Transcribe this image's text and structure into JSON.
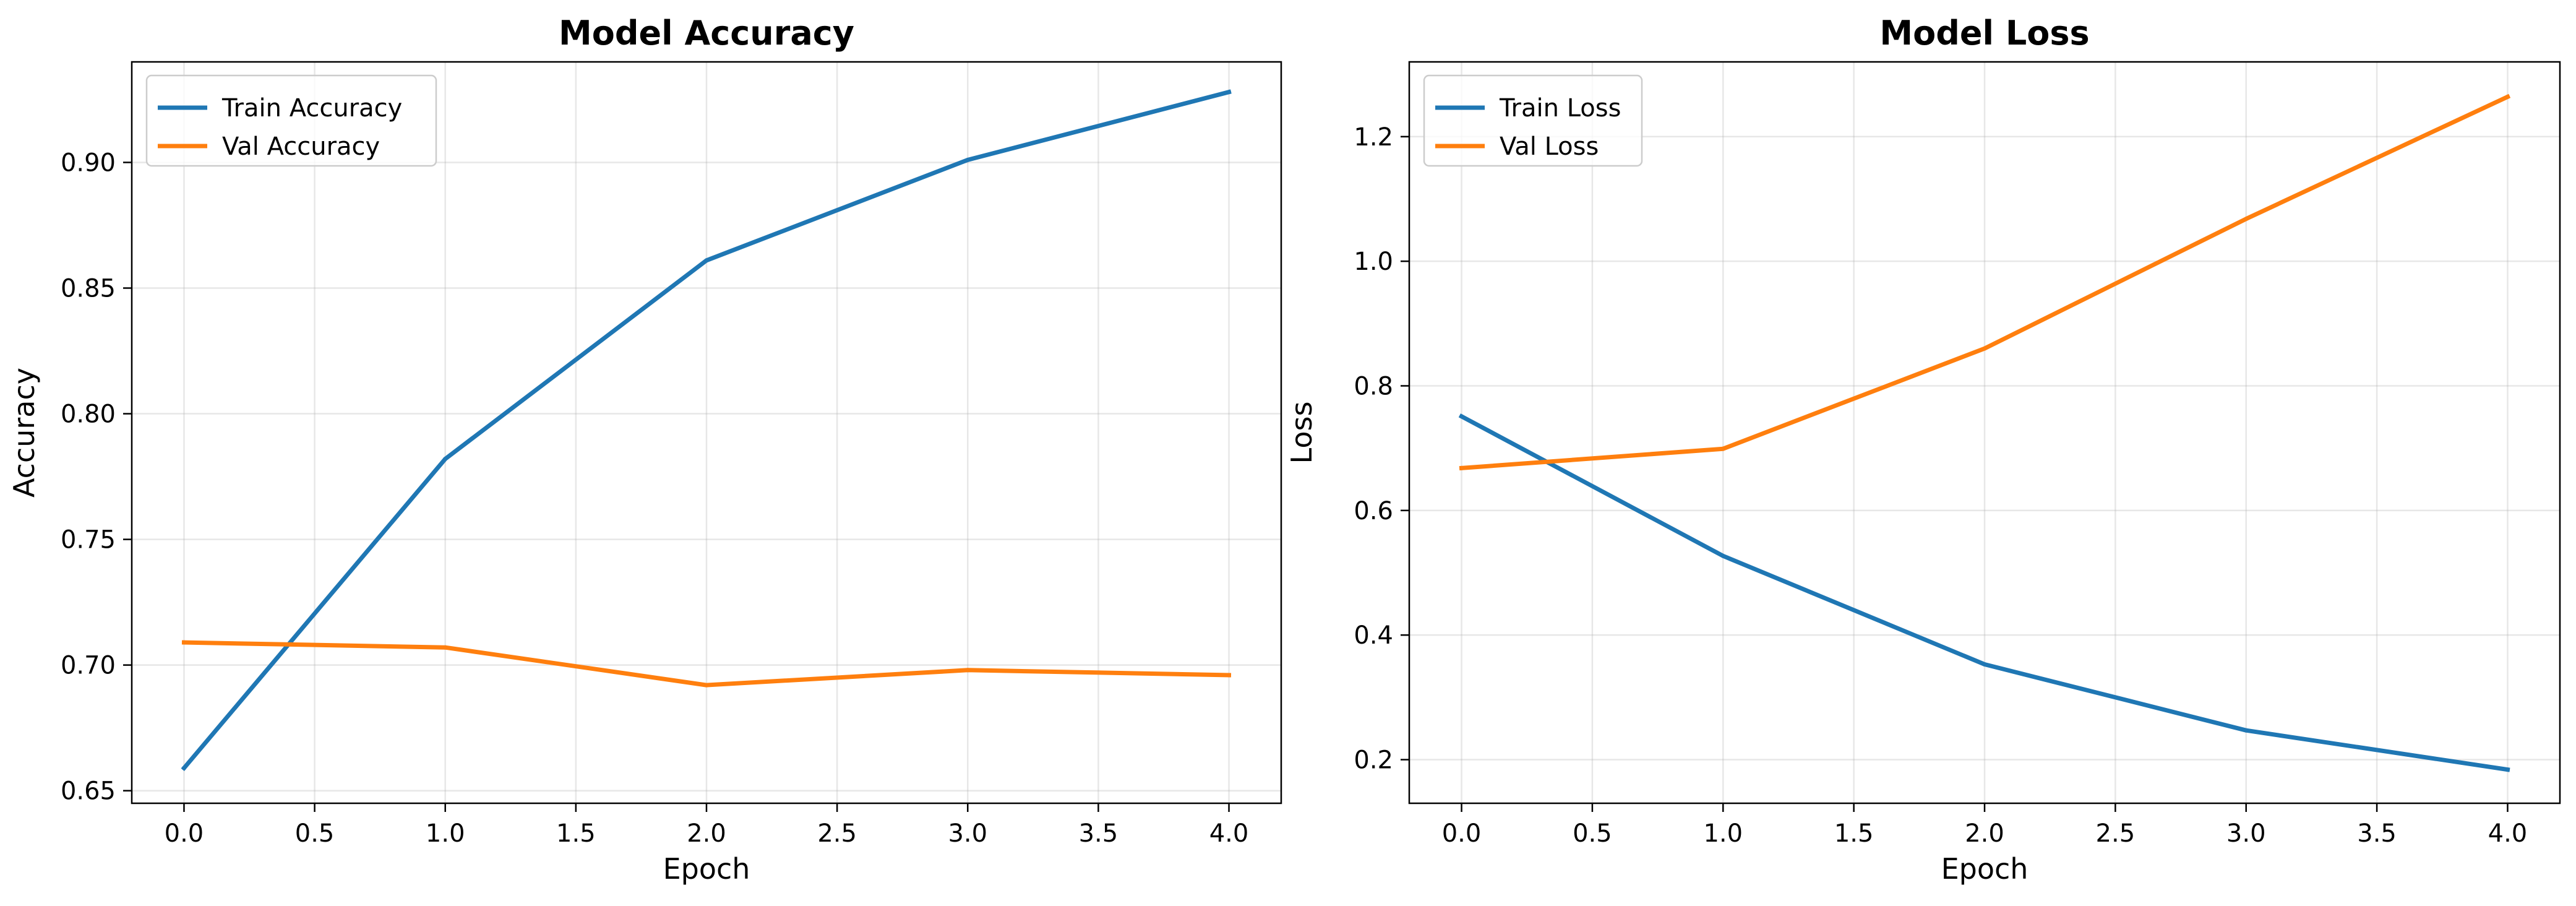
{
  "chart_data": [
    {
      "type": "line",
      "title": "Model Accuracy",
      "xlabel": "Epoch",
      "ylabel": "Accuracy",
      "xlim": [
        -0.2,
        4.2
      ],
      "ylim": [
        0.645,
        0.94
      ],
      "x_ticks": [
        0.0,
        0.5,
        1.0,
        1.5,
        2.0,
        2.5,
        3.0,
        3.5,
        4.0
      ],
      "x_tick_labels": [
        "0.0",
        "0.5",
        "1.0",
        "1.5",
        "2.0",
        "2.5",
        "3.0",
        "3.5",
        "4.0"
      ],
      "y_ticks": [
        0.65,
        0.7,
        0.75,
        0.8,
        0.85,
        0.9
      ],
      "y_tick_labels": [
        "0.65",
        "0.70",
        "0.75",
        "0.80",
        "0.85",
        "0.90"
      ],
      "grid": true,
      "legend_position": "top-left",
      "x": [
        0,
        1,
        2,
        3,
        4
      ],
      "series": [
        {
          "name": "Train Accuracy",
          "color": "#1f77b4",
          "values": [
            0.659,
            0.782,
            0.861,
            0.901,
            0.928
          ]
        },
        {
          "name": "Val Accuracy",
          "color": "#ff7f0e",
          "values": [
            0.709,
            0.707,
            0.692,
            0.698,
            0.696
          ]
        }
      ]
    },
    {
      "type": "line",
      "title": "Model Loss",
      "xlabel": "Epoch",
      "ylabel": "Loss",
      "xlim": [
        -0.2,
        4.2
      ],
      "ylim": [
        0.13,
        1.32
      ],
      "x_ticks": [
        0.0,
        0.5,
        1.0,
        1.5,
        2.0,
        2.5,
        3.0,
        3.5,
        4.0
      ],
      "x_tick_labels": [
        "0.0",
        "0.5",
        "1.0",
        "1.5",
        "2.0",
        "2.5",
        "3.0",
        "3.5",
        "4.0"
      ],
      "y_ticks": [
        0.2,
        0.4,
        0.6,
        0.8,
        1.0,
        1.2
      ],
      "y_tick_labels": [
        "0.2",
        "0.4",
        "0.6",
        "0.8",
        "1.0",
        "1.2"
      ],
      "grid": true,
      "legend_position": "top-left",
      "x": [
        0,
        1,
        2,
        3,
        4
      ],
      "series": [
        {
          "name": "Train Loss",
          "color": "#1f77b4",
          "values": [
            0.751,
            0.527,
            0.353,
            0.247,
            0.184
          ]
        },
        {
          "name": "Val Loss",
          "color": "#ff7f0e",
          "values": [
            0.668,
            0.699,
            0.86,
            1.068,
            1.264
          ]
        }
      ]
    }
  ]
}
